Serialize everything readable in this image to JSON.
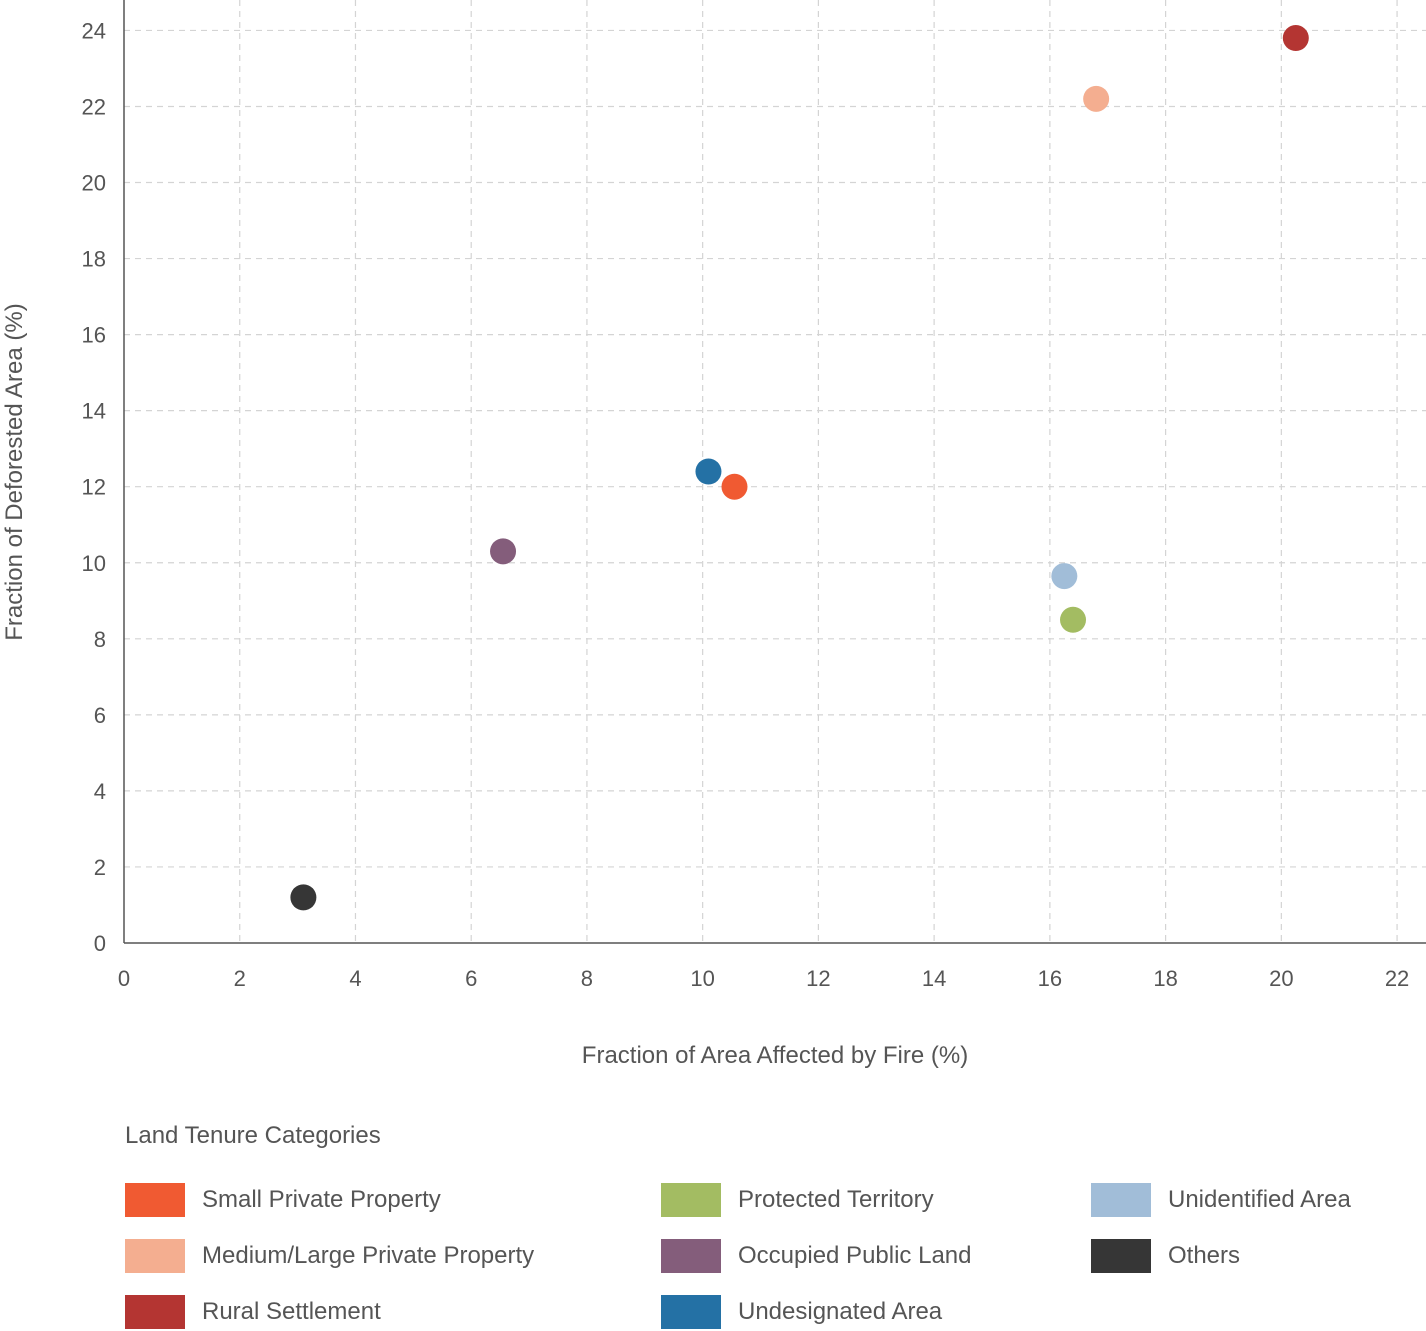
{
  "chart_data": {
    "type": "scatter",
    "title": "",
    "xlabel": "Fraction of Area Affected by Fire (%)",
    "ylabel": "Fraction of Deforested Area (%)",
    "xlim": [
      0,
      22.5
    ],
    "ylim": [
      0,
      24.8
    ],
    "xticks": [
      0,
      2,
      4,
      6,
      8,
      10,
      12,
      14,
      16,
      18,
      20,
      22
    ],
    "yticks": [
      0,
      2,
      4,
      6,
      8,
      10,
      12,
      14,
      16,
      18,
      20,
      22,
      24
    ],
    "grid": true,
    "legend_title": "Land Tenure Categories",
    "legend_position": "bottom",
    "series": [
      {
        "name": "Small Private Property",
        "color": "#f05a32",
        "x": 10.55,
        "y": 12.0
      },
      {
        "name": "Medium/Large Private Property",
        "color": "#f4ae90",
        "x": 16.8,
        "y": 22.2
      },
      {
        "name": "Rural Settlement",
        "color": "#b43532",
        "x": 20.25,
        "y": 23.8
      },
      {
        "name": "Protected Territory",
        "color": "#a3bc62",
        "x": 16.4,
        "y": 8.5
      },
      {
        "name": "Occupied Public Land",
        "color": "#845d7b",
        "x": 6.55,
        "y": 10.3
      },
      {
        "name": "Undesignated Area",
        "color": "#2471a5",
        "x": 10.1,
        "y": 12.4
      },
      {
        "name": "Unidentified Area",
        "color": "#a1bdd8",
        "x": 16.25,
        "y": 9.65
      },
      {
        "name": "Others",
        "color": "#363636",
        "x": 3.1,
        "y": 1.2
      }
    ]
  }
}
